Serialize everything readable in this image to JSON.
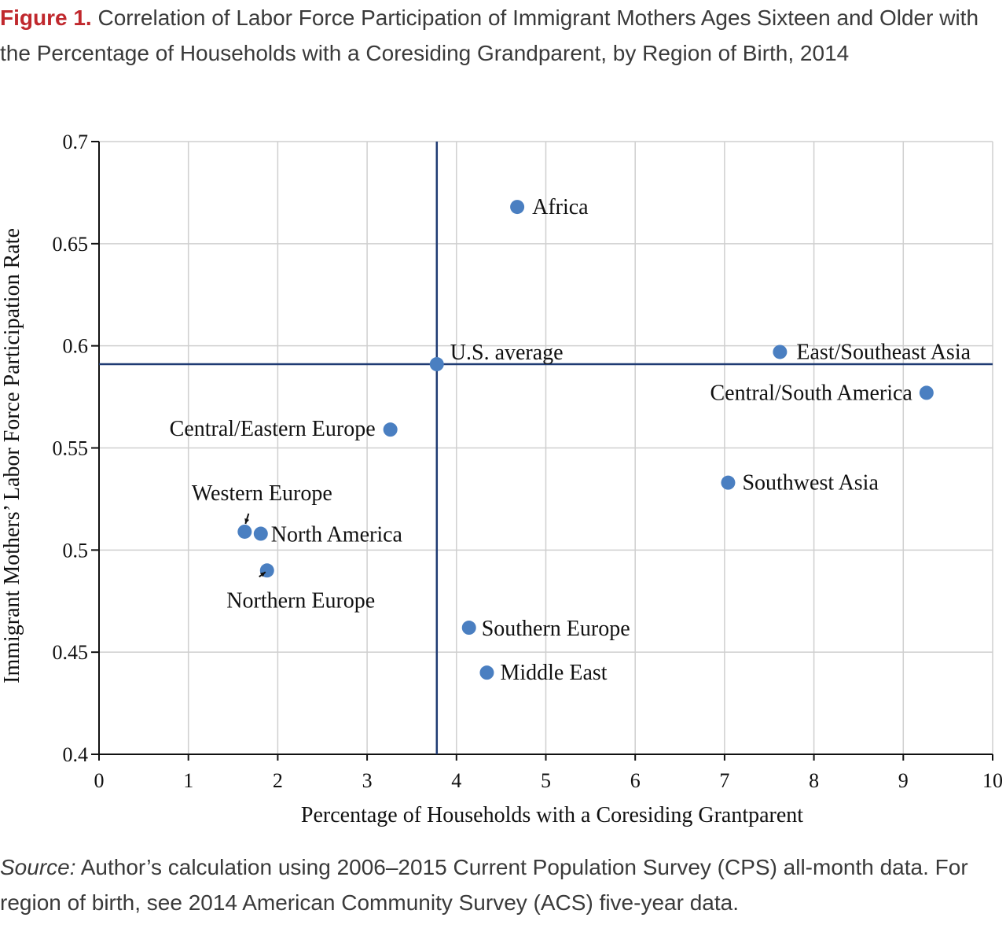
{
  "figure": {
    "label": "Figure 1.",
    "title": "Correlation of Labor Force Participation of Immigrant Mothers Ages Sixteen and Older with the Percentage of Households with a Coresiding Grandparent, by Region of Birth, 2014",
    "source_label": "Source:",
    "source_text": "Author’s calculation using 2006–2015 Current Population Survey (CPS) all-month data. For region of birth, see 2014 American Community Survey (ACS) five-year data."
  },
  "chart_data": {
    "type": "scatter",
    "xlabel": "Percentage of Households with a Coresiding Grantparent",
    "ylabel": "Immigrant Mothers’ Labor Force Participation Rate",
    "xlim": [
      0,
      10
    ],
    "ylim": [
      0.4,
      0.7
    ],
    "xticks": [
      0,
      1,
      2,
      3,
      4,
      5,
      6,
      7,
      8,
      9,
      10
    ],
    "yticks": [
      0.4,
      0.45,
      0.5,
      0.55,
      0.6,
      0.65,
      0.7
    ],
    "ytick_labels": [
      "0.4",
      "0.45",
      "0.5",
      "0.55",
      "0.6",
      "0.65",
      "0.7"
    ],
    "grid": true,
    "point_color": "#4a7fc1",
    "reference_line_color": "#1f3b73",
    "reference_lines": {
      "x": 3.78,
      "y": 0.591
    },
    "points": [
      {
        "label": "Africa",
        "x": 4.68,
        "y": 0.668
      },
      {
        "label": "U.S. average",
        "x": 3.78,
        "y": 0.591
      },
      {
        "label": "East/Southeast Asia",
        "x": 7.62,
        "y": 0.597
      },
      {
        "label": "Central/South America",
        "x": 9.26,
        "y": 0.577
      },
      {
        "label": "Central/Eastern Europe",
        "x": 3.26,
        "y": 0.559
      },
      {
        "label": "Southwest Asia",
        "x": 7.04,
        "y": 0.533
      },
      {
        "label": "Western Europe",
        "x": 1.63,
        "y": 0.509
      },
      {
        "label": "North America",
        "x": 1.81,
        "y": 0.508
      },
      {
        "label": "Northern Europe",
        "x": 1.88,
        "y": 0.49
      },
      {
        "label": "Southern Europe",
        "x": 4.14,
        "y": 0.462
      },
      {
        "label": "Middle East",
        "x": 4.34,
        "y": 0.44
      }
    ]
  }
}
